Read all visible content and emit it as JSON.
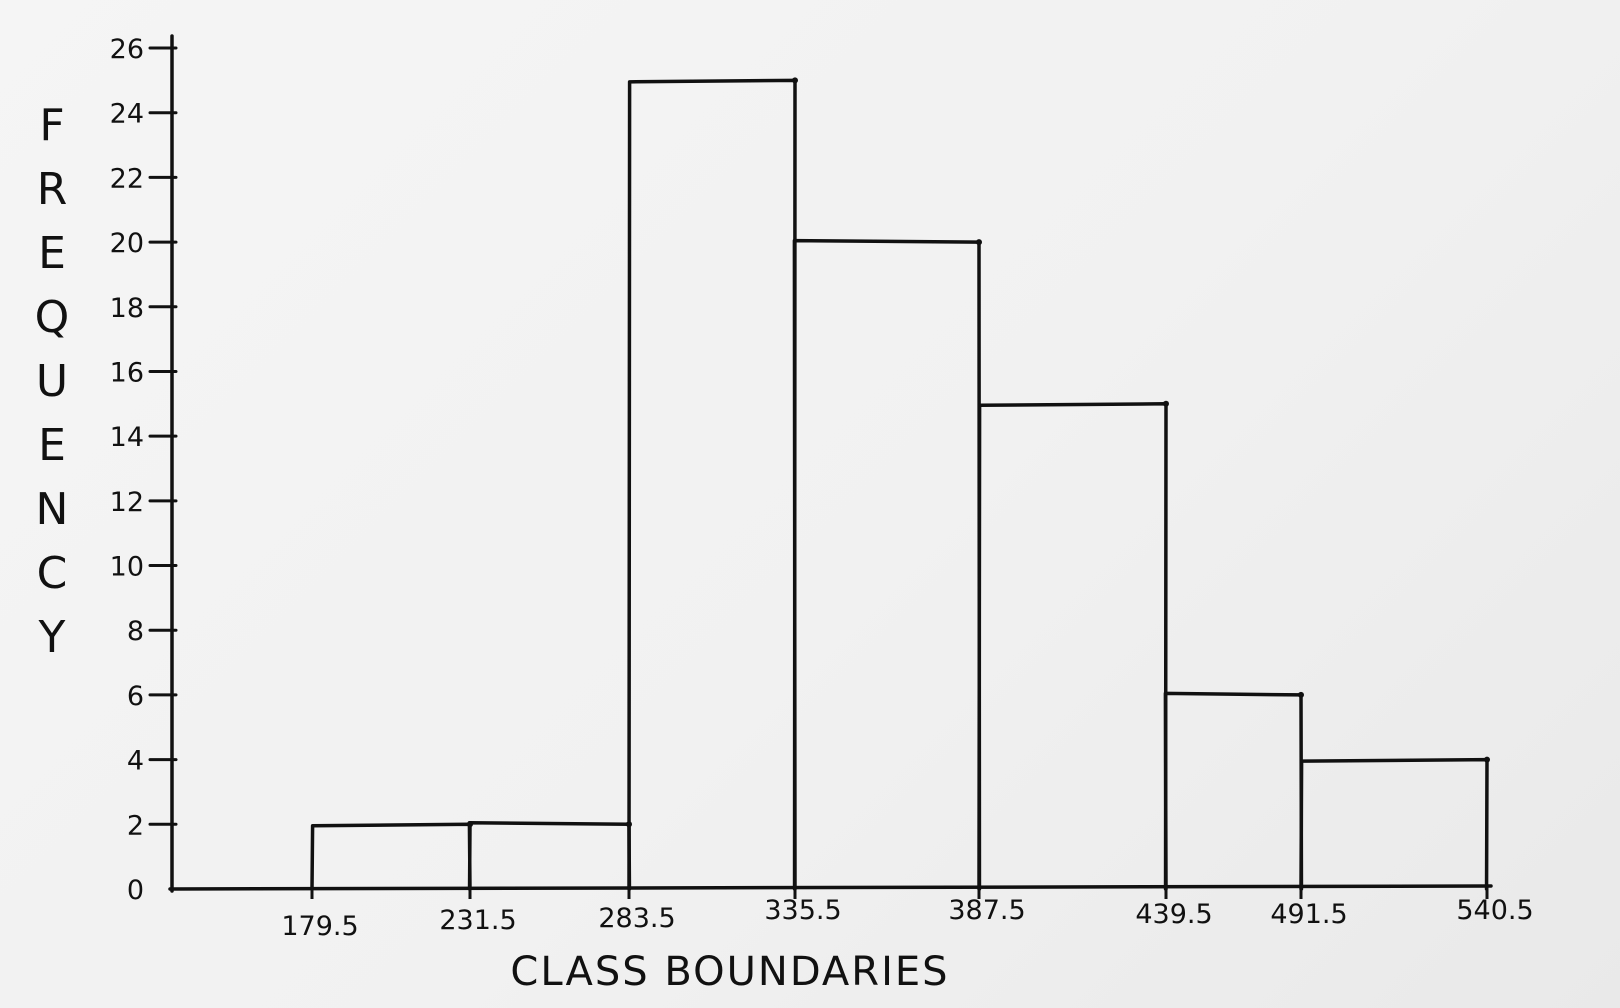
{
  "chart_data": {
    "type": "bar",
    "subtype": "histogram",
    "title": "",
    "xlabel": "CLASS BOUNDARIES",
    "ylabel": "FREQUENCY",
    "ylabel_letters": [
      "F",
      "R",
      "E",
      "Q",
      "U",
      "E",
      "N",
      "C",
      "Y"
    ],
    "bin_edges": [
      179.5,
      231.5,
      283.5,
      335.5,
      387.5,
      439.5,
      491.5,
      540.5
    ],
    "x_tick_labels": [
      "179.5",
      "231.5",
      "283.5",
      "335.5",
      "387.5",
      "439.5",
      "491.5",
      "540.5"
    ],
    "values": [
      2,
      2,
      25,
      20,
      15,
      6,
      4
    ],
    "y_ticks": [
      0,
      2,
      4,
      6,
      8,
      10,
      12,
      14,
      16,
      18,
      20,
      22,
      24,
      26
    ],
    "ylim": [
      0,
      26
    ],
    "grid": false,
    "legend": "none",
    "style": "hand-drawn ink on paper",
    "color": "#111111"
  }
}
